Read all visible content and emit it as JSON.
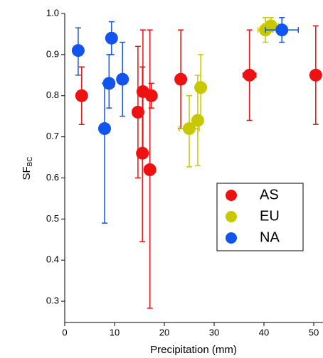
{
  "chart_data": {
    "type": "scatter",
    "xlabel": "Precipitation (mm)",
    "ylabel": "SF",
    "ylabel_sub": "BC",
    "xlim": [
      0,
      52
    ],
    "ylim": [
      0.25,
      1.0
    ],
    "xticks": [
      0,
      10,
      20,
      30,
      40,
      50
    ],
    "yticks": [
      0.3,
      0.4,
      0.5,
      0.6,
      0.7,
      0.8,
      0.9,
      {
        "value": 1,
        "label": "1.0"
      }
    ],
    "legend": "lower-right",
    "series": [
      {
        "name": "AS",
        "color": "#ee1111",
        "x": [
          3.4,
          14.7,
          15.7,
          15.6,
          17.1,
          17.4,
          23.3,
          37.1,
          50.4
        ],
        "values": [
          0.8,
          0.76,
          0.81,
          0.66,
          0.62,
          0.8,
          0.84,
          0.85,
          0.85
        ],
        "xerr": [
          0,
          1.0,
          1.0,
          0.5,
          0.5,
          1.0,
          1.0,
          1.3,
          0.5
        ],
        "yerr_minus": [
          0.07,
          0.16,
          0.14,
          0.215,
          0.337,
          0.03,
          0.12,
          0.11,
          0.12
        ],
        "yerr_plus": [
          0.07,
          0.16,
          0.15,
          0.21,
          0.34,
          0.03,
          0.12,
          0.11,
          0.12
        ]
      },
      {
        "name": "EU",
        "color": "#c8c800",
        "x": [
          25.0,
          26.7,
          27.3,
          40.3,
          41.4
        ],
        "values": [
          0.72,
          0.74,
          0.82,
          0.96,
          0.97
        ],
        "xerr": [
          2.0,
          1.0,
          0.5,
          1.5,
          1.5
        ],
        "yerr_minus": [
          0.093,
          0.11,
          0.08,
          0.03,
          0.01
        ],
        "yerr_plus": [
          0.08,
          0.11,
          0.08,
          0.03,
          0.02
        ]
      },
      {
        "name": "NA",
        "color": "#1155ee",
        "x": [
          2.7,
          8.0,
          9.4,
          8.9,
          11.6,
          43.6
        ],
        "values": [
          0.91,
          0.72,
          0.94,
          0.83,
          0.84,
          0.96
        ],
        "xerr": [
          0.5,
          0.5,
          0.5,
          1.0,
          0.5,
          3.3
        ],
        "yerr_minus": [
          0.06,
          0.23,
          0.04,
          0.06,
          0.09,
          0.03
        ],
        "yerr_plus": [
          0.055,
          0.11,
          0.04,
          0.07,
          0.09,
          0.03
        ]
      }
    ]
  }
}
